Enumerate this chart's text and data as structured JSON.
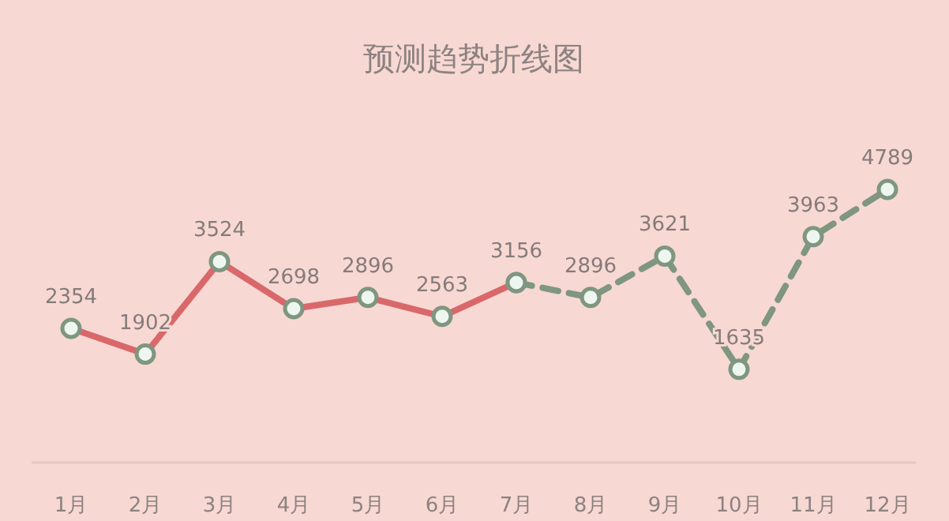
{
  "chart_data": {
    "type": "line",
    "title": "预测趋势折线图",
    "categories": [
      "1月",
      "2月",
      "3月",
      "4月",
      "5月",
      "6月",
      "7月",
      "8月",
      "9月",
      "10月",
      "11月",
      "12月"
    ],
    "series": [
      {
        "color": "#d9686b",
        "line_style": "solid",
        "values": [
          2354,
          1902,
          3524,
          2698,
          2896,
          2563,
          3156,
          null,
          null,
          null,
          null,
          null
        ],
        "value_labels": [
          "2354",
          "1902",
          "3524",
          "2698",
          "2896",
          "2563",
          "3156",
          null,
          null,
          null,
          null,
          null
        ]
      },
      {
        "color": "#7f9680",
        "line_style": "dashed",
        "values": [
          null,
          null,
          null,
          null,
          null,
          null,
          3156,
          2896,
          3621,
          1635,
          3963,
          4789
        ],
        "value_labels": [
          null,
          null,
          null,
          null,
          null,
          null,
          null,
          "2896",
          "3621",
          "1635",
          "3963",
          "4789"
        ]
      }
    ],
    "marker": "circle"
  }
}
